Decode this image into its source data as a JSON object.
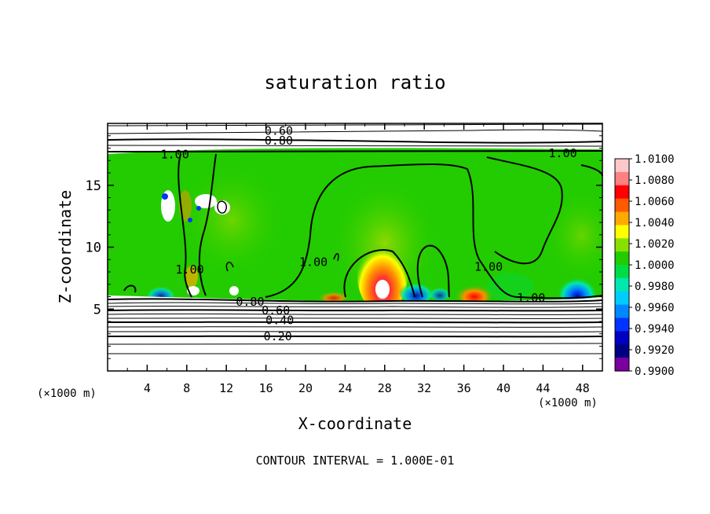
{
  "chart_data": {
    "type": "heatmap",
    "title": "saturation ratio",
    "xlabel": "X-coordinate",
    "ylabel": "Z-coordinate",
    "x_unit_left": "(×1000 m)",
    "x_unit_right": "(×1000 m)",
    "xlim": [
      0,
      50
    ],
    "ylim": [
      0,
      20
    ],
    "x_ticks": [
      "4",
      "8",
      "12",
      "16",
      "20",
      "24",
      "28",
      "32",
      "36",
      "40",
      "44",
      "48"
    ],
    "y_ticks": [
      "5",
      "10",
      "15"
    ],
    "colorbar_ticks": [
      "1.0100",
      "1.0080",
      "1.0060",
      "1.0040",
      "1.0020",
      "1.0000",
      "0.9980",
      "0.9960",
      "0.9940",
      "0.9920",
      "0.9900"
    ],
    "colorbar_colors": [
      "#ffc8c8",
      "#ff8080",
      "#ff0000",
      "#ff5a00",
      "#ffaa00",
      "#ffff00",
      "#88e000",
      "#22cc00",
      "#00dd44",
      "#00e8b0",
      "#00ccff",
      "#0088ff",
      "#0033ff",
      "#0000c0",
      "#000080",
      "#7a00a0"
    ],
    "contour_labels": [
      {
        "text": "0.60",
        "x": 17.3,
        "y": 19.4
      },
      {
        "text": "0.80",
        "x": 17.3,
        "y": 18.6
      },
      {
        "text": "1.00",
        "x": 6.8,
        "y": 17.5
      },
      {
        "text": "1.00",
        "x": 46.0,
        "y": 17.6
      },
      {
        "text": "1.00",
        "x": 8.3,
        "y": 8.2
      },
      {
        "text": "1.00",
        "x": 20.8,
        "y": 8.8
      },
      {
        "text": "1.00",
        "x": 38.5,
        "y": 8.4
      },
      {
        "text": "1.00",
        "x": 42.8,
        "y": 5.9
      },
      {
        "text": "0.80",
        "x": 14.4,
        "y": 5.6
      },
      {
        "text": "0.60",
        "x": 17.0,
        "y": 4.9
      },
      {
        "text": "0.40",
        "x": 17.4,
        "y": 4.1
      },
      {
        "text": "0.20",
        "x": 17.2,
        "y": 2.8
      }
    ],
    "footer": "CONTOUR INTERVAL = 1.000E-01"
  }
}
